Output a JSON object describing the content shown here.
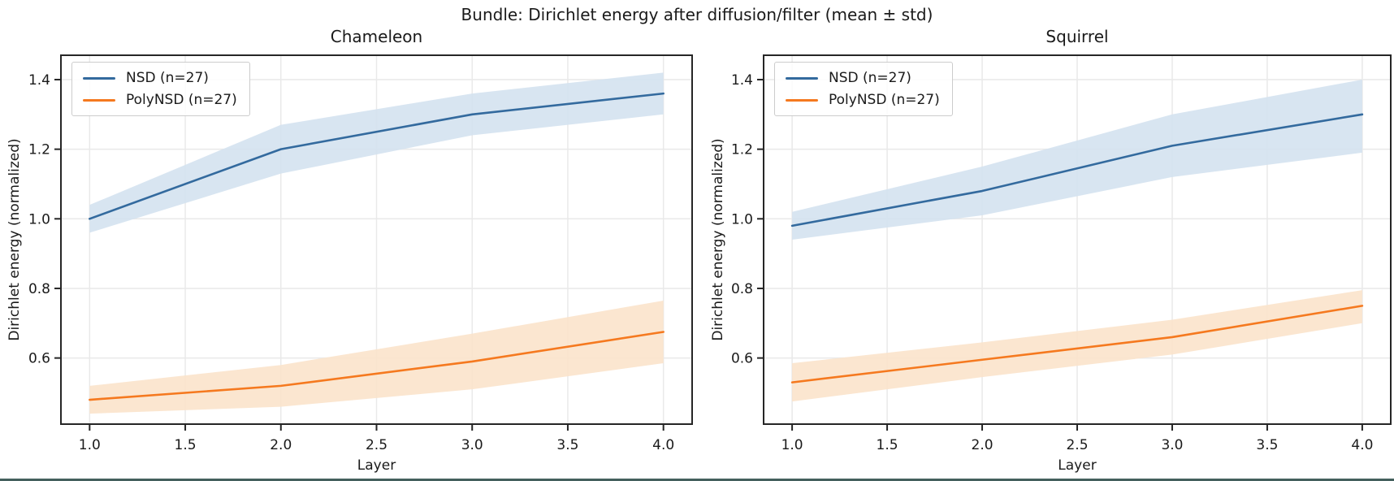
{
  "suptitle": "Bundle: Dirichlet energy after diffusion/filter (mean ± std)",
  "colors": {
    "nsd_line": "#336a9e",
    "nsd_band": "#d4e2ef",
    "polynsd_line": "#f5791f",
    "polynsd_band": "#fbe3cb",
    "spine": "#262626",
    "grid": "#e9e9e9",
    "text": "#1a1a1a",
    "legend_border": "#cccccc",
    "bottom_strip": "#44605d"
  },
  "chart_data": [
    {
      "type": "line",
      "title": "Chameleon",
      "xlabel": "Layer",
      "ylabel": "Dirichlet energy (normalized)",
      "x": [
        1,
        2,
        3,
        4
      ],
      "xlim": [
        0.85,
        4.15
      ],
      "ylim": [
        0.41,
        1.47
      ],
      "x_ticks": [
        1.0,
        1.5,
        2.0,
        2.5,
        3.0,
        3.5,
        4.0
      ],
      "x_tick_labels": [
        "1.0",
        "1.5",
        "2.0",
        "2.5",
        "3.0",
        "3.5",
        "4.0"
      ],
      "y_ticks": [
        0.6,
        0.8,
        1.0,
        1.2,
        1.4
      ],
      "y_tick_labels": [
        "0.6",
        "0.8",
        "1.0",
        "1.2",
        "1.4"
      ],
      "grid": true,
      "legend_position": "upper left",
      "series": [
        {
          "name": "NSD (n=27)",
          "color": "#336a9e",
          "band_color": "#d4e2ef",
          "mean": [
            1.0,
            1.2,
            1.3,
            1.36
          ],
          "lower": [
            0.96,
            1.13,
            1.24,
            1.3
          ],
          "upper": [
            1.04,
            1.27,
            1.36,
            1.42
          ]
        },
        {
          "name": "PolyNSD (n=27)",
          "color": "#f5791f",
          "band_color": "#fbe3cb",
          "mean": [
            0.48,
            0.52,
            0.59,
            0.675
          ],
          "lower": [
            0.44,
            0.46,
            0.51,
            0.585
          ],
          "upper": [
            0.52,
            0.58,
            0.67,
            0.765
          ]
        }
      ]
    },
    {
      "type": "line",
      "title": "Squirrel",
      "xlabel": "Layer",
      "ylabel": "Dirichlet energy (normalized)",
      "x": [
        1,
        2,
        3,
        4
      ],
      "xlim": [
        0.85,
        4.15
      ],
      "ylim": [
        0.41,
        1.47
      ],
      "x_ticks": [
        1.0,
        1.5,
        2.0,
        2.5,
        3.0,
        3.5,
        4.0
      ],
      "x_tick_labels": [
        "1.0",
        "1.5",
        "2.0",
        "2.5",
        "3.0",
        "3.5",
        "4.0"
      ],
      "y_ticks": [
        0.6,
        0.8,
        1.0,
        1.2,
        1.4
      ],
      "y_tick_labels": [
        "0.6",
        "0.8",
        "1.0",
        "1.2",
        "1.4"
      ],
      "grid": true,
      "legend_position": "upper left",
      "series": [
        {
          "name": "NSD (n=27)",
          "color": "#336a9e",
          "band_color": "#d4e2ef",
          "mean": [
            0.98,
            1.08,
            1.21,
            1.3
          ],
          "lower": [
            0.94,
            1.01,
            1.12,
            1.19
          ],
          "upper": [
            1.02,
            1.15,
            1.3,
            1.4
          ]
        },
        {
          "name": "PolyNSD (n=27)",
          "color": "#f5791f",
          "band_color": "#fbe3cb",
          "mean": [
            0.53,
            0.595,
            0.66,
            0.75
          ],
          "lower": [
            0.475,
            0.545,
            0.61,
            0.7
          ],
          "upper": [
            0.585,
            0.645,
            0.71,
            0.795
          ]
        }
      ]
    }
  ]
}
